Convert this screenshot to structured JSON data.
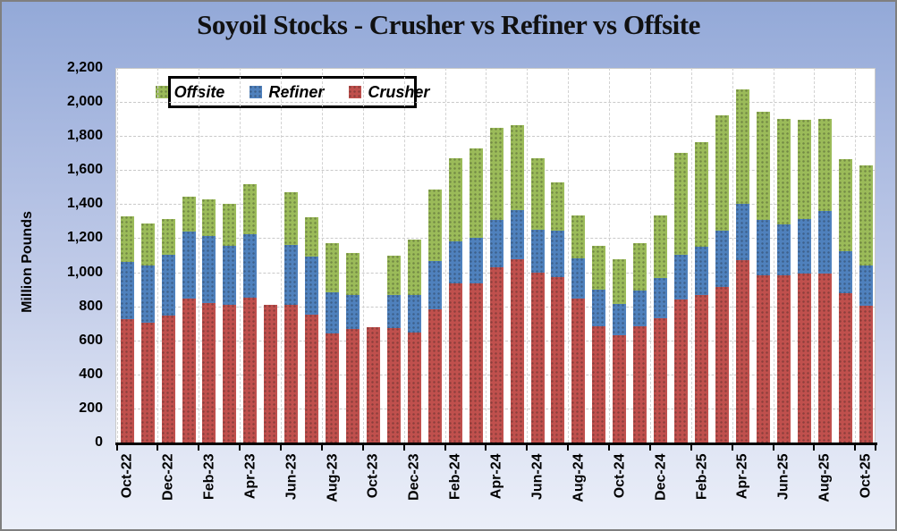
{
  "title": "Soyoil Stocks - Crusher vs Refiner vs Offsite",
  "y_axis": {
    "title": "Million Pounds",
    "min": 0,
    "max": 2200,
    "step": 200,
    "tick_labels": [
      "0",
      "200",
      "400",
      "600",
      "800",
      "1,000",
      "1,200",
      "1,400",
      "1,600",
      "1,800",
      "2,000",
      "2,200"
    ]
  },
  "legend": [
    {
      "label": "Offsite",
      "color": "#9BBB59"
    },
    {
      "label": "Refiner",
      "color": "#4F81BD"
    },
    {
      "label": "Crusher",
      "color": "#C0504D"
    }
  ],
  "colors": {
    "crusher": "#C0504D",
    "refiner": "#4F81BD",
    "offsite": "#9BBB59",
    "gridline": "#C9C9C9",
    "axis": "#000000",
    "plot_background": "#FFFFFF",
    "background_top": "#93A9D8",
    "background_bottom": "#EBEFF9"
  },
  "chart_data": {
    "type": "bar",
    "stacked": true,
    "title": "Soyoil Stocks - Crusher vs Refiner vs Offsite",
    "xlabel": "",
    "ylabel": "Million Pounds",
    "ylim": [
      0,
      2200
    ],
    "grid": true,
    "legend_position": "top-left-inside",
    "legend_order": [
      "Offsite",
      "Refiner",
      "Crusher"
    ],
    "x_labels_shown_every": 2,
    "categories": [
      "Oct-22",
      "Nov-22",
      "Dec-22",
      "Jan-23",
      "Feb-23",
      "Mar-23",
      "Apr-23",
      "May-23",
      "Jun-23",
      "Jul-23",
      "Aug-23",
      "Sep-23",
      "Oct-23",
      "Nov-23",
      "Dec-23",
      "Jan-24",
      "Feb-24",
      "Mar-24",
      "Apr-24",
      "May-24",
      "Jun-24",
      "Jul-24",
      "Aug-24",
      "Sep-24",
      "Oct-24",
      "Nov-24",
      "Dec-24",
      "Jan-25",
      "Feb-25",
      "Mar-25",
      "Apr-25",
      "May-25",
      "Jun-25",
      "Jul-25",
      "Aug-25",
      "Sep-25",
      "Oct-25"
    ],
    "series": [
      {
        "name": "Crusher",
        "color": "#C0504D",
        "values": [
          725,
          705,
          745,
          845,
          820,
          810,
          850,
          810,
          810,
          750,
          640,
          665,
          675,
          670,
          645,
          780,
          935,
          935,
          1030,
          1075,
          995,
          970,
          845,
          685,
          630,
          685,
          730,
          840,
          865,
          915,
          1070,
          980,
          980,
          990,
          990,
          875,
          805
        ]
      },
      {
        "name": "Refiner",
        "color": "#4F81BD",
        "values": [
          335,
          335,
          360,
          395,
          395,
          345,
          375,
          0,
          350,
          340,
          240,
          200,
          0,
          195,
          220,
          285,
          245,
          265,
          280,
          290,
          255,
          275,
          235,
          215,
          185,
          205,
          235,
          265,
          285,
          330,
          330,
          325,
          300,
          325,
          370,
          250,
          235
        ]
      },
      {
        "name": "Offsite",
        "color": "#9BBB59",
        "values": [
          270,
          245,
          210,
          205,
          215,
          245,
          290,
          0,
          310,
          235,
          290,
          250,
          0,
          235,
          325,
          420,
          490,
          525,
          540,
          500,
          420,
          285,
          255,
          255,
          260,
          280,
          370,
          595,
          615,
          675,
          675,
          640,
          620,
          580,
          540,
          540,
          590
        ]
      }
    ]
  }
}
